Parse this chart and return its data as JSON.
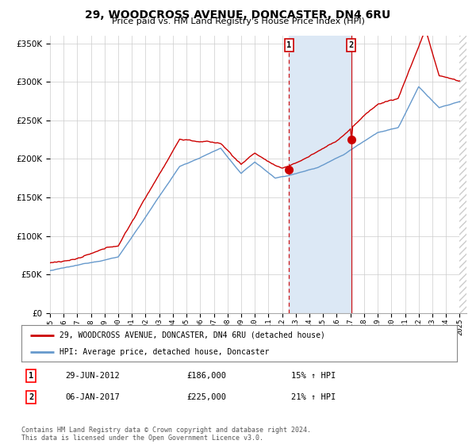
{
  "title": "29, WOODCROSS AVENUE, DONCASTER, DN4 6RU",
  "subtitle": "Price paid vs. HM Land Registry's House Price Index (HPI)",
  "hpi_label": "HPI: Average price, detached house, Doncaster",
  "price_label": "29, WOODCROSS AVENUE, DONCASTER, DN4 6RU (detached house)",
  "legend_entry1_date": "29-JUN-2012",
  "legend_entry1_price": "£186,000",
  "legend_entry1_pct": "15% ↑ HPI",
  "legend_entry2_date": "06-JAN-2017",
  "legend_entry2_price": "£225,000",
  "legend_entry2_pct": "21% ↑ HPI",
  "footnote": "Contains HM Land Registry data © Crown copyright and database right 2024.\nThis data is licensed under the Open Government Licence v3.0.",
  "sale1_year": 2012.5,
  "sale1_value": 186000,
  "sale2_year": 2017.05,
  "sale2_value": 225000,
  "ylim": [
    0,
    360000
  ],
  "xlim_start": 1995.0,
  "xlim_end": 2025.5,
  "price_color": "#cc0000",
  "hpi_color": "#6699cc",
  "shade_color": "#dce8f5",
  "background_color": "#ffffff",
  "grid_color": "#cccccc",
  "hatch_color": "#cccccc"
}
